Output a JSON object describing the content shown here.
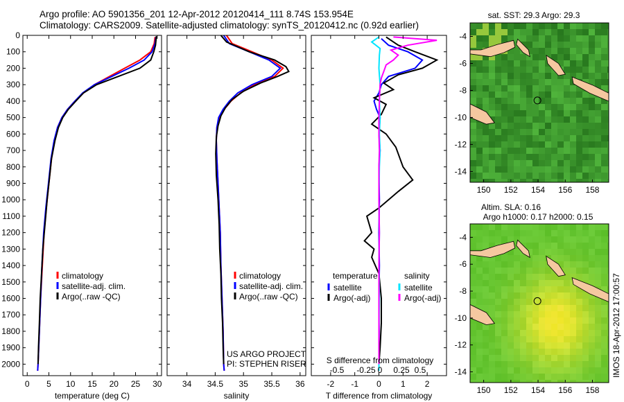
{
  "title": {
    "line1": "Argo profile: AO 5901356_201 12-Apr-2012 20120414_111 8.74S 153.954E",
    "line2": "Climatology: CARS2009. Satellite-adjusted climatology: synTS_20120412.nc (0.92d earlier)"
  },
  "colors": {
    "climatology": "#ff0000",
    "satellite": "#0000ff",
    "argo": "#000000",
    "satellite_diff": "#00e5ff",
    "argo_adj": "#ff00ff",
    "land": "#f5c8a0"
  },
  "chart_data": [
    {
      "type": "line",
      "id": "temperature",
      "xlabel": "temperature (deg C)",
      "xlim": [
        -1,
        31
      ],
      "xticks": [
        0,
        5,
        10,
        15,
        20,
        25,
        30
      ],
      "ylim": [
        0,
        2070
      ],
      "yticks": [
        0,
        100,
        200,
        300,
        400,
        500,
        600,
        700,
        800,
        900,
        1000,
        1100,
        1200,
        1300,
        1400,
        1500,
        1600,
        1700,
        1800,
        1900,
        2000
      ],
      "legend": [
        "climatology",
        "satellite-adj. clim.",
        "Argo(..raw -QC)"
      ],
      "series": [
        {
          "name": "climatology",
          "color": "#ff0000",
          "points": [
            [
              29.5,
              10
            ],
            [
              29.3,
              50
            ],
            [
              28.5,
              100
            ],
            [
              26,
              150
            ],
            [
              22.5,
              200
            ],
            [
              19,
              250
            ],
            [
              15.5,
              300
            ],
            [
              13,
              350
            ],
            [
              11,
              400
            ],
            [
              9.3,
              450
            ],
            [
              8,
              500
            ],
            [
              7,
              560
            ],
            [
              6.3,
              640
            ],
            [
              5.6,
              750
            ],
            [
              5,
              900
            ],
            [
              4.4,
              1050
            ],
            [
              3.9,
              1200
            ],
            [
              3.5,
              1400
            ],
            [
              3.1,
              1600
            ],
            [
              2.8,
              1800
            ],
            [
              2.5,
              2000
            ],
            [
              2.4,
              2040
            ]
          ]
        },
        {
          "name": "satellite-adj. clim.",
          "color": "#0000ff",
          "points": [
            [
              29.7,
              10
            ],
            [
              29.5,
              50
            ],
            [
              28.8,
              100
            ],
            [
              27,
              150
            ],
            [
              23.5,
              200
            ],
            [
              19.5,
              250
            ],
            [
              15.5,
              300
            ],
            [
              12.8,
              350
            ],
            [
              11,
              400
            ],
            [
              9.3,
              450
            ],
            [
              8,
              500
            ],
            [
              7,
              560
            ],
            [
              6.2,
              640
            ],
            [
              5.5,
              750
            ],
            [
              4.9,
              900
            ],
            [
              4.3,
              1050
            ],
            [
              3.8,
              1200
            ],
            [
              3.4,
              1400
            ],
            [
              3.1,
              1600
            ],
            [
              2.8,
              1800
            ],
            [
              2.5,
              2000
            ],
            [
              2.4,
              2040
            ]
          ]
        },
        {
          "name": "Argo(..raw -QC)",
          "color": "#000000",
          "points": [
            [
              29.8,
              5
            ],
            [
              29.6,
              60
            ],
            [
              29.2,
              100
            ],
            [
              28.5,
              150
            ],
            [
              26,
              200
            ],
            [
              21,
              250
            ],
            [
              16,
              300
            ],
            [
              13,
              350
            ],
            [
              11.2,
              400
            ],
            [
              9.5,
              450
            ],
            [
              8.2,
              500
            ],
            [
              7.2,
              560
            ],
            [
              6.4,
              640
            ],
            [
              5.6,
              750
            ],
            [
              5.2,
              850
            ],
            [
              4.6,
              1000
            ],
            [
              4.1,
              1150
            ],
            [
              3.6,
              1300
            ],
            [
              3.3,
              1450
            ],
            [
              3,
              1600
            ],
            [
              2.8,
              1750
            ],
            [
              2.6,
              1900
            ],
            [
              2.5,
              2000
            ]
          ]
        }
      ]
    },
    {
      "type": "line",
      "id": "salinity",
      "xlabel": "salinity",
      "xlim": [
        33.65,
        36.1
      ],
      "xticks": [
        34,
        34.5,
        35,
        35.5,
        36
      ],
      "ylim": [
        0,
        2070
      ],
      "legend": [
        "climatology",
        "satellite-adj. clim.",
        "Argo(..raw -QC)"
      ],
      "annotation": [
        "US ARGO PROJECT",
        "PI: STEPHEN RISER"
      ],
      "series": [
        {
          "name": "climatology",
          "color": "#ff0000",
          "points": [
            [
              34.7,
              0
            ],
            [
              34.8,
              50
            ],
            [
              35.15,
              100
            ],
            [
              35.5,
              150
            ],
            [
              35.7,
              200
            ],
            [
              35.55,
              250
            ],
            [
              35.2,
              300
            ],
            [
              34.95,
              350
            ],
            [
              34.78,
              400
            ],
            [
              34.66,
              450
            ],
            [
              34.57,
              500
            ],
            [
              34.53,
              560
            ],
            [
              34.52,
              640
            ],
            [
              34.53,
              750
            ],
            [
              34.55,
              900
            ],
            [
              34.57,
              1050
            ],
            [
              34.59,
              1200
            ],
            [
              34.6,
              1400
            ],
            [
              34.62,
              1600
            ],
            [
              34.64,
              1800
            ],
            [
              34.65,
              2000
            ],
            [
              34.66,
              2040
            ]
          ]
        },
        {
          "name": "satellite-adj. clim.",
          "color": "#0000ff",
          "points": [
            [
              34.65,
              0
            ],
            [
              34.75,
              50
            ],
            [
              35.1,
              100
            ],
            [
              35.45,
              150
            ],
            [
              35.65,
              200
            ],
            [
              35.5,
              250
            ],
            [
              35.15,
              300
            ],
            [
              34.9,
              350
            ],
            [
              34.75,
              400
            ],
            [
              34.64,
              450
            ],
            [
              34.56,
              500
            ],
            [
              34.53,
              560
            ],
            [
              34.52,
              640
            ],
            [
              34.53,
              750
            ],
            [
              34.55,
              900
            ],
            [
              34.57,
              1050
            ],
            [
              34.59,
              1200
            ],
            [
              34.6,
              1400
            ],
            [
              34.62,
              1600
            ],
            [
              34.64,
              1800
            ],
            [
              34.65,
              2000
            ],
            [
              34.66,
              2040
            ]
          ]
        },
        {
          "name": "Argo(..raw -QC)",
          "color": "#000000",
          "points": [
            [
              34.6,
              0
            ],
            [
              34.7,
              40
            ],
            [
              35.1,
              100
            ],
            [
              35.55,
              150
            ],
            [
              35.75,
              190
            ],
            [
              35.8,
              220
            ],
            [
              35.6,
              250
            ],
            [
              35.3,
              290
            ],
            [
              35,
              340
            ],
            [
              34.8,
              390
            ],
            [
              34.68,
              440
            ],
            [
              34.6,
              490
            ],
            [
              34.55,
              550
            ],
            [
              34.52,
              620
            ],
            [
              34.51,
              720
            ],
            [
              34.52,
              850
            ],
            [
              34.55,
              1000
            ],
            [
              34.57,
              1150
            ],
            [
              34.58,
              1300
            ],
            [
              34.6,
              1450
            ],
            [
              34.61,
              1600
            ],
            [
              34.63,
              1750
            ],
            [
              34.64,
              1900
            ],
            [
              34.65,
              2000
            ]
          ]
        }
      ]
    },
    {
      "type": "line",
      "id": "difference",
      "xlabel": "T difference from climatology",
      "xlabel_top": "S difference from climatology",
      "xlim": [
        -2.8,
        2.8
      ],
      "xticks": [
        -2,
        -1,
        0,
        1,
        2
      ],
      "xticks_top": [
        -0.5,
        -0.25,
        0,
        0.25,
        0.5
      ],
      "ylim": [
        0,
        2070
      ],
      "legend_left_title": "temperature",
      "legend_right_title": "salinity",
      "legend": [
        "satellite",
        "Argo(-adj)",
        "satellite",
        "Argo(-adj)"
      ],
      "series": [
        {
          "name": "T satellite",
          "color": "#0000ff",
          "points": [
            [
              0.1,
              20
            ],
            [
              0.4,
              60
            ],
            [
              1.2,
              100
            ],
            [
              1.8,
              150
            ],
            [
              1.5,
              200
            ],
            [
              0.4,
              250
            ],
            [
              0.1,
              300
            ],
            [
              0,
              350
            ],
            [
              -0.2,
              400
            ],
            [
              -0.1,
              450
            ],
            [
              0.05,
              500
            ],
            [
              0,
              600
            ],
            [
              0.05,
              700
            ],
            [
              0,
              800
            ],
            [
              0.02,
              1000
            ],
            [
              0,
              1200
            ],
            [
              0.02,
              1400
            ],
            [
              0,
              1600
            ],
            [
              0.01,
              1800
            ],
            [
              0,
              2000
            ],
            [
              0,
              2040
            ]
          ]
        },
        {
          "name": "T Argo(-adj)",
          "color": "#000000",
          "points": [
            [
              0.3,
              10
            ],
            [
              0.8,
              60
            ],
            [
              1.5,
              100
            ],
            [
              2.4,
              150
            ],
            [
              1.8,
              200
            ],
            [
              0.8,
              240
            ],
            [
              0.2,
              290
            ],
            [
              0.6,
              330
            ],
            [
              -0.2,
              380
            ],
            [
              0.3,
              420
            ],
            [
              0.1,
              480
            ],
            [
              -0.3,
              540
            ],
            [
              0.3,
              600
            ],
            [
              0.7,
              680
            ],
            [
              1,
              800
            ],
            [
              1.4,
              880
            ],
            [
              0.8,
              950
            ],
            [
              0.4,
              1000
            ],
            [
              0,
              1050
            ],
            [
              -0.5,
              1100
            ],
            [
              -0.3,
              1200
            ],
            [
              -0.6,
              1250
            ],
            [
              -0.2,
              1300
            ],
            [
              -0.3,
              1350
            ],
            [
              0,
              1450
            ],
            [
              0.1,
              1600
            ],
            [
              0.1,
              1750
            ],
            [
              0.05,
              1900
            ],
            [
              0,
              2000
            ]
          ]
        },
        {
          "name": "S satellite",
          "color": "#00e5ff",
          "points": [
            [
              0,
              10
            ],
            [
              -0.3,
              40
            ],
            [
              0.05,
              80
            ],
            [
              0.02,
              120
            ],
            [
              0,
              200
            ],
            [
              0.05,
              300
            ],
            [
              0.02,
              400
            ],
            [
              0.05,
              500
            ],
            [
              0.02,
              600
            ],
            [
              0.05,
              700
            ],
            [
              0.02,
              800
            ],
            [
              0,
              1000
            ],
            [
              0.02,
              1200
            ],
            [
              0,
              1400
            ],
            [
              0.02,
              1600
            ],
            [
              0,
              1800
            ],
            [
              0,
              2000
            ],
            [
              0,
              2040
            ]
          ]
        },
        {
          "name": "S Argo(-adj)",
          "color": "#ff00ff",
          "points": [
            [
              0.6,
              10
            ],
            [
              2.4,
              30
            ],
            [
              1.2,
              60
            ],
            [
              0.5,
              90
            ],
            [
              0.8,
              120
            ],
            [
              0.6,
              150
            ],
            [
              0.3,
              180
            ],
            [
              0.2,
              220
            ],
            [
              0.1,
              260
            ],
            [
              0.05,
              300
            ],
            [
              0.02,
              400
            ],
            [
              0,
              500
            ],
            [
              0,
              600
            ],
            [
              0.02,
              700
            ],
            [
              0,
              800
            ],
            [
              0,
              1000
            ],
            [
              0.02,
              1200
            ],
            [
              0,
              1400
            ],
            [
              0,
              1600
            ],
            [
              0,
              1800
            ],
            [
              0,
              2000
            ]
          ]
        }
      ]
    },
    {
      "type": "heatmap",
      "id": "sst_map",
      "title": "sat. SST: 29.3 Argo: 29.3",
      "xlim": [
        149,
        159.2
      ],
      "ylim": [
        -14.8,
        -3
      ],
      "xticks": [
        150,
        152,
        154,
        156,
        158
      ],
      "yticks": [
        -4,
        -6,
        -8,
        -10,
        -12,
        -14
      ],
      "marker": [
        153.954,
        -8.74
      ]
    },
    {
      "type": "heatmap",
      "id": "sla_map",
      "title_line1": "Altim. SLA: 0.16",
      "title_line2": "Argo h1000: 0.17 h2000: 0.15",
      "xlim": [
        149,
        159.2
      ],
      "ylim": [
        -14.8,
        -3
      ],
      "xticks": [
        150,
        152,
        154,
        156,
        158
      ],
      "yticks": [
        -4,
        -6,
        -8,
        -10,
        -12,
        -14
      ],
      "marker": [
        153.954,
        -8.74
      ]
    }
  ],
  "side_label": "IMOS 18-Apr-2012 17:00:57"
}
